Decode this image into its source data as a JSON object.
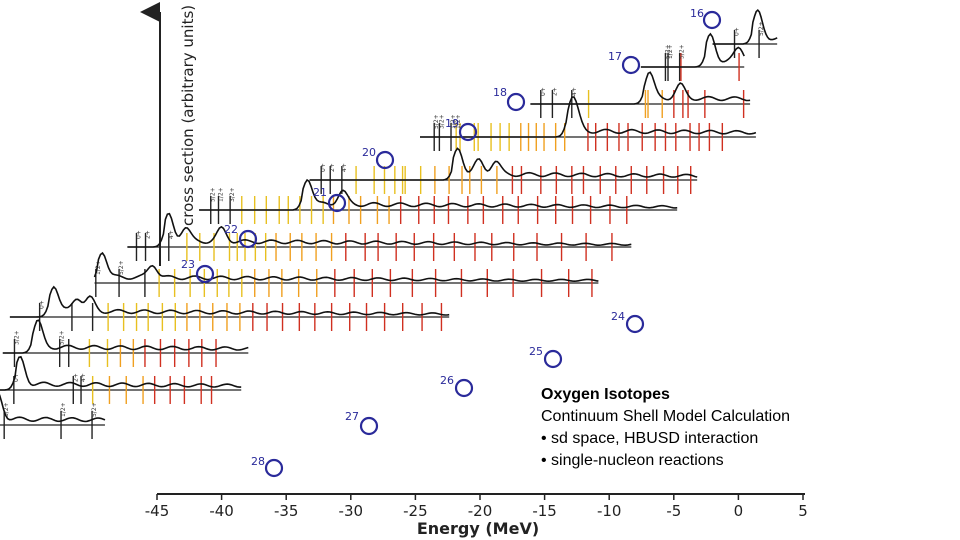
{
  "caption": {
    "title": "Oxygen Isotopes",
    "line1": "Continuum Shell Model Calculation",
    "line2": "• sd space,  HBUSD interaction",
    "line3": "• single-nucleon reactions"
  },
  "chart_data": {
    "type": "line",
    "ylabel": "cross section (arbitrary units)",
    "xlabel": "Energy (MeV)",
    "xlim": [
      -45,
      5
    ],
    "x_ticks": [
      -45,
      -40,
      -35,
      -30,
      -25,
      -20,
      -15,
      -10,
      -5,
      0,
      5
    ],
    "x_tick_labels": [
      "-45",
      "-40",
      "-35",
      "-30",
      "-25",
      "-20",
      "-15",
      "-10",
      "-5",
      "0",
      "5"
    ],
    "element_symbol": "O",
    "series": [
      {
        "name": "16",
        "mass": 16,
        "baseline_range": [
          -2,
          3
        ],
        "peaks": [
          1.5
        ],
        "levels": [
          -0.3,
          1.6
        ],
        "spin_labels": [
          "0+",
          "5/2+"
        ]
      },
      {
        "name": "17",
        "mass": 17,
        "baseline_range": [
          -6,
          2
        ],
        "peaks": [
          -0.6,
          1.6
        ],
        "levels": [
          -4.1,
          -3.9,
          -3.0,
          -2.9,
          1.6
        ],
        "spin_labels": [
          "5/2+",
          "1/2+",
          "5/2+"
        ]
      },
      {
        "name": "18",
        "mass": 18,
        "baseline_range": [
          -13,
          4
        ],
        "peaks": [
          -3.8,
          -1.4
        ],
        "levels": [
          -12.2,
          -11.3,
          -9.8,
          -8.5,
          -4.1,
          -3.9,
          -2.8,
          -1.9,
          -1.2,
          -0.8,
          0.5,
          3.5
        ],
        "spin_labels": [
          "0+",
          "2+",
          "4+"
        ]
      },
      {
        "name": "19",
        "mass": 19,
        "baseline_range": [
          -20,
          6
        ],
        "peaks": [
          -8.3,
          -7.9
        ],
        "levels": [
          -18.9,
          -18.5,
          -17.6,
          -17.2,
          -16.9,
          -15.8,
          -15.5,
          -14.5,
          -13.8,
          -13.1,
          -12.2,
          -11.6,
          -11.0,
          -10.4,
          -9.5,
          -8.8,
          -7.0,
          -6.4,
          -5.5,
          -4.6,
          -3.9,
          -2.8,
          -1.8,
          -1.0,
          -0.2,
          0.9,
          1.6,
          2.4,
          3.4
        ],
        "spin_labels": [
          "5/2+",
          "3/2+",
          "1/2+",
          "1/2+"
        ]
      },
      {
        "name": "20",
        "mass": 20,
        "baseline_range": [
          -27,
          3
        ],
        "peaks": [
          -15.5,
          -13.9,
          -12.6
        ],
        "levels": [
          -26.1,
          -25.4,
          -24.5,
          -23.4,
          -22.0,
          -21.2,
          -20.4,
          -19.8,
          -19.6,
          -18.4,
          -17.3,
          -16.2,
          -15.2,
          -14.6,
          -13.7,
          -12.5,
          -11.3,
          -10.6,
          -9.1,
          -7.9,
          -6.7,
          -5.8,
          -4.5,
          -3.3,
          -2.1,
          -0.9,
          0.4,
          1.5,
          2.5
        ],
        "spin_labels": [
          "0+",
          "2+",
          "4+"
        ]
      },
      {
        "name": "21",
        "mass": 21,
        "baseline_range": [
          -34,
          3
        ],
        "peaks": [
          -25.6,
          -22.9
        ],
        "levels": [
          -33.1,
          -32.5,
          -31.6,
          -30.7,
          -29.7,
          -28.8,
          -27.8,
          -27.1,
          -26.2,
          -25.3,
          -24.4,
          -23.6,
          -22.4,
          -21.5,
          -20.2,
          -19.3,
          -18.4,
          -17.0,
          -15.8,
          -14.7,
          -13.2,
          -12.0,
          -10.5,
          -9.3,
          -7.8,
          -6.4,
          -5.1,
          -3.7,
          -2.2,
          -0.9
        ],
        "spin_labels": [
          "5/2+",
          "1/2+",
          "3/2+"
        ]
      },
      {
        "name": "22",
        "mass": 22,
        "baseline_range": [
          -38,
          1
        ],
        "peaks": [
          -34.8,
          -33.5,
          -30.7
        ],
        "levels": [
          -37.3,
          -36.6,
          -34.8,
          -33.4,
          -32.4,
          -31.3,
          -30.1,
          -29.5,
          -28.9,
          -28.1,
          -27.3,
          -26.5,
          -25.4,
          -24.5,
          -23.4,
          -22.2,
          -21.1,
          -19.6,
          -18.6,
          -17.2,
          -15.8,
          -14.3,
          -12.7,
          -11.1,
          -9.8,
          -8.1,
          -6.3,
          -4.4,
          -2.5,
          -0.5
        ],
        "spin_labels": [
          "0+",
          "2+",
          "4+"
        ]
      },
      {
        "name": "23",
        "mass": 23,
        "baseline_range": [
          -39,
          0
        ],
        "peaks": [
          -38.4,
          -34.5
        ],
        "levels": [
          -38.9,
          -37.1,
          -35.1,
          -34.0,
          -32.8,
          -31.6,
          -30.5,
          -29.5,
          -28.6,
          -27.6,
          -26.6,
          -25.5,
          -24.5,
          -23.2,
          -21.8,
          -20.4,
          -18.9,
          -17.5,
          -16.1,
          -14.4,
          -12.6,
          -10.6,
          -8.6,
          -6.6,
          -4.4,
          -2.3,
          -0.5
        ],
        "spin_labels": [
          "1/2+",
          "5/2+"
        ]
      },
      {
        "name": "24",
        "mass": 24,
        "baseline_range": [
          -44,
          -10
        ],
        "peaks": [
          -40.6,
          -38.8,
          -37.8
        ],
        "levels": [
          -41.7,
          -39.2,
          -37.6,
          -36.4,
          -35.2,
          -34.2,
          -33.3,
          -32.2,
          -31.2,
          -30.3,
          -29.3,
          -28.3,
          -27.2,
          -26.2,
          -25.2,
          -24.1,
          -22.9,
          -21.6,
          -20.4,
          -19.1,
          -17.7,
          -16.4,
          -15.0,
          -13.6,
          -12.1,
          -10.6
        ],
        "spin_labels": [
          "0+"
        ]
      },
      {
        "name": "25",
        "mass": 25,
        "baseline_range": [
          -43,
          -24
        ],
        "peaks": [
          -40.3
        ],
        "levels": [
          -42.1,
          -38.6,
          -37.9,
          -36.3,
          -34.9,
          -33.9,
          -32.9,
          -32.0,
          -30.8,
          -29.7,
          -28.6,
          -27.6,
          -26.5
        ],
        "spin_labels": [
          "3/2+",
          "5/2+"
        ]
      },
      {
        "name": "26",
        "mass": 26,
        "baseline_range": [
          -43,
          -23
        ],
        "peaks": [
          -40.1
        ],
        "levels": [
          -40.6,
          -36.0,
          -35.4,
          -34.5,
          -33.2,
          -31.9,
          -30.6,
          -29.7,
          -28.5,
          -27.4,
          -26.1,
          -25.3
        ],
        "spin_labels": [
          "0+",
          "2+",
          "4+"
        ]
      },
      {
        "name": "27",
        "mass": 27,
        "baseline_range": [
          -42,
          -32
        ],
        "peaks": [
          -40.3
        ],
        "levels": [
          -39.8,
          -35.4,
          -33.0
        ],
        "spin_labels": [
          "3/2+",
          "1/2+",
          "5/2+"
        ]
      },
      {
        "name": "28",
        "mass": 28,
        "baseline_range": [
          -40,
          -39
        ],
        "peaks": [],
        "levels": [
          -39.7
        ],
        "spin_labels": [
          "0+"
        ]
      }
    ]
  }
}
